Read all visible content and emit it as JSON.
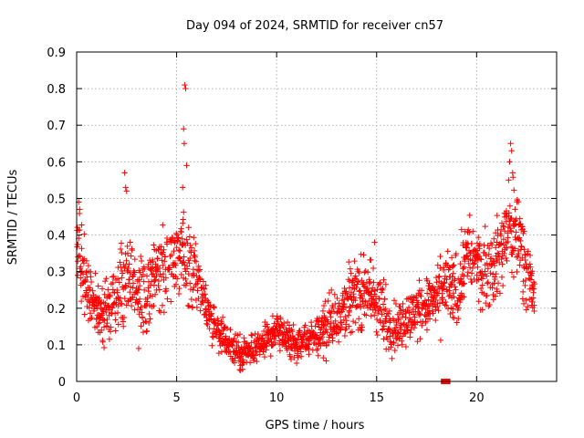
{
  "chart_data": {
    "type": "scatter",
    "title": "Day 094 of 2024, SRMTID for receiver cn57",
    "xlabel": "GPS time / hours",
    "ylabel": "SRMTID / TECUs",
    "xlim": [
      0,
      24
    ],
    "ylim": [
      0,
      0.9
    ],
    "xticks": [
      0,
      5,
      10,
      15,
      20
    ],
    "yticks": [
      0,
      0.1,
      0.2,
      0.3,
      0.4,
      0.5,
      0.6,
      0.7,
      0.8,
      0.9
    ],
    "xtick_labels": [
      "0",
      "5",
      "10",
      "15",
      "20"
    ],
    "ytick_labels": [
      "0",
      "0.1",
      "0.2",
      "0.3",
      "0.4",
      "0.5",
      "0.6",
      "0.7",
      "0.8",
      "0.9"
    ],
    "grid": true,
    "marker": "+",
    "color": "#ff0000",
    "series": [
      {
        "name": "SRMTID",
        "trend": {
          "x": [
            0.0,
            0.3,
            0.6,
            1.0,
            1.5,
            2.0,
            2.5,
            3.0,
            3.5,
            4.0,
            4.5,
            5.0,
            5.5,
            6.0,
            6.5,
            7.0,
            7.5,
            8.0,
            8.5,
            9.0,
            9.5,
            10.0,
            10.5,
            11.0,
            11.5,
            12.0,
            12.5,
            13.0,
            13.5,
            14.0,
            14.5,
            15.0,
            15.5,
            16.0,
            16.5,
            17.0,
            17.5,
            18.0,
            18.5,
            19.0,
            19.5,
            20.0,
            20.5,
            21.0,
            21.5,
            22.0,
            22.5,
            22.9
          ],
          "y": [
            0.4,
            0.3,
            0.22,
            0.2,
            0.19,
            0.22,
            0.31,
            0.26,
            0.24,
            0.3,
            0.32,
            0.36,
            0.32,
            0.29,
            0.2,
            0.15,
            0.11,
            0.08,
            0.08,
            0.09,
            0.11,
            0.14,
            0.12,
            0.1,
            0.11,
            0.13,
            0.15,
            0.18,
            0.22,
            0.24,
            0.24,
            0.22,
            0.16,
            0.15,
            0.17,
            0.19,
            0.21,
            0.22,
            0.26,
            0.24,
            0.35,
            0.32,
            0.3,
            0.33,
            0.4,
            0.42,
            0.32,
            0.22
          ],
          "spread": [
            0.06,
            0.07,
            0.06,
            0.05,
            0.06,
            0.07,
            0.08,
            0.07,
            0.07,
            0.08,
            0.08,
            0.08,
            0.08,
            0.07,
            0.04,
            0.04,
            0.03,
            0.03,
            0.03,
            0.03,
            0.03,
            0.03,
            0.03,
            0.03,
            0.03,
            0.04,
            0.05,
            0.06,
            0.06,
            0.06,
            0.07,
            0.07,
            0.06,
            0.05,
            0.05,
            0.05,
            0.05,
            0.06,
            0.07,
            0.07,
            0.07,
            0.07,
            0.07,
            0.08,
            0.08,
            0.09,
            0.07,
            0.05
          ]
        },
        "notable_points": [
          {
            "x": 0.1,
            "y": 0.49
          },
          {
            "x": 0.15,
            "y": 0.47
          },
          {
            "x": 2.4,
            "y": 0.57
          },
          {
            "x": 2.45,
            "y": 0.53
          },
          {
            "x": 2.5,
            "y": 0.52
          },
          {
            "x": 3.1,
            "y": 0.09
          },
          {
            "x": 5.4,
            "y": 0.81
          },
          {
            "x": 5.45,
            "y": 0.8
          },
          {
            "x": 5.35,
            "y": 0.69
          },
          {
            "x": 5.38,
            "y": 0.65
          },
          {
            "x": 5.5,
            "y": 0.59
          },
          {
            "x": 5.3,
            "y": 0.53
          },
          {
            "x": 14.9,
            "y": 0.38
          },
          {
            "x": 21.7,
            "y": 0.65
          },
          {
            "x": 21.75,
            "y": 0.63
          },
          {
            "x": 21.65,
            "y": 0.6
          },
          {
            "x": 21.8,
            "y": 0.57
          },
          {
            "x": 21.6,
            "y": 0.55
          },
          {
            "x": 8.2,
            "y": 0.03
          },
          {
            "x": 11.0,
            "y": 0.05
          }
        ]
      },
      {
        "name": "zero-values",
        "x": [
          18.35,
          18.45,
          18.55
        ],
        "y": [
          0,
          0,
          0
        ]
      }
    ]
  }
}
